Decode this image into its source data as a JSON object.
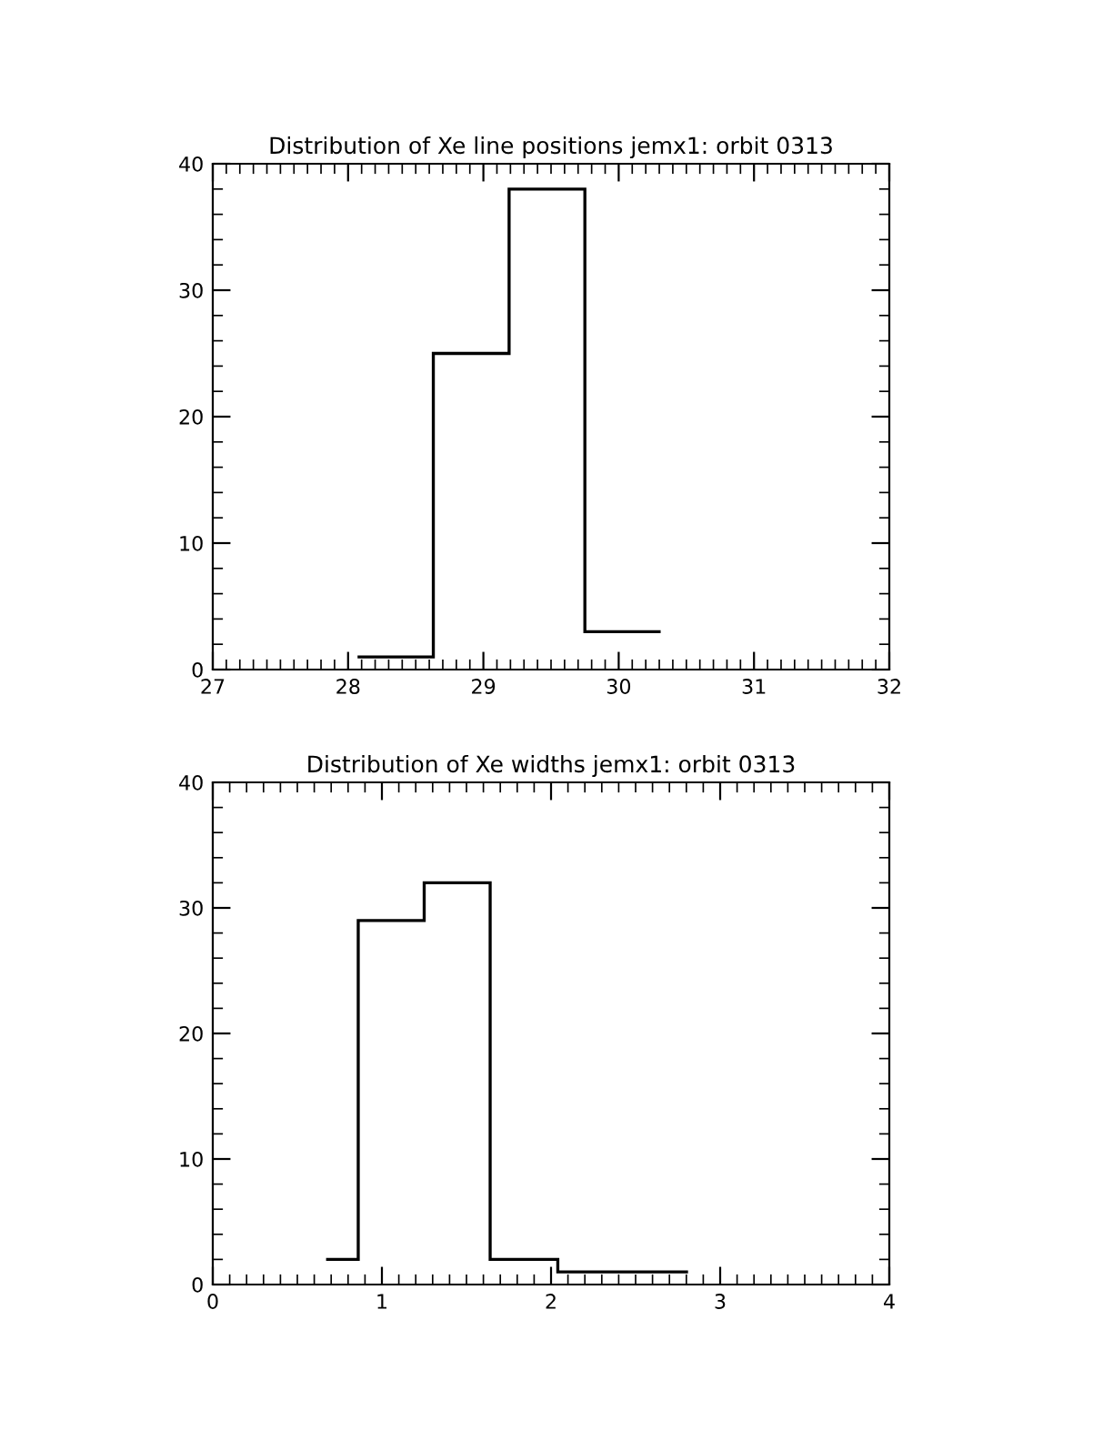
{
  "chart_data": [
    {
      "type": "histogram",
      "title": "Distribution of Xe line positions jemx1: orbit 0313",
      "bins": [
        28.07,
        28.63,
        29.19,
        29.75,
        30.31
      ],
      "values": [
        1,
        25,
        38,
        3
      ],
      "color": "#000000",
      "xlim": [
        27,
        32
      ],
      "xticks": [
        27,
        28,
        29,
        30,
        31,
        32
      ],
      "ylim": [
        0,
        40
      ],
      "yticks": [
        0,
        10,
        20,
        30,
        40
      ],
      "grid": false
    },
    {
      "type": "histogram",
      "title": "Distribution of Xe widths jemx1: orbit 0313",
      "bins": [
        0.67,
        0.86,
        1.25,
        1.64,
        2.04,
        2.42,
        2.81
      ],
      "values": [
        2,
        29,
        32,
        2,
        1,
        1
      ],
      "color": "#000000",
      "xlim": [
        0,
        4
      ],
      "xticks": [
        0,
        1,
        2,
        3,
        4
      ],
      "ylim": [
        0,
        40
      ],
      "yticks": [
        0,
        10,
        20,
        30,
        40
      ],
      "grid": false
    }
  ]
}
